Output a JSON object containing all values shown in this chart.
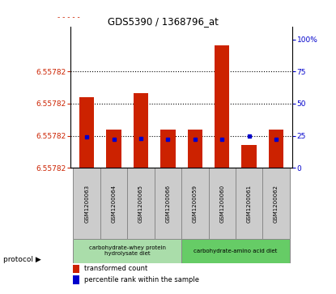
{
  "title": "GDS5390 / 1368796_at",
  "samples": [
    "GSM1200063",
    "GSM1200064",
    "GSM1200065",
    "GSM1200066",
    "GSM1200059",
    "GSM1200060",
    "GSM1200061",
    "GSM1200062"
  ],
  "ytick_labels": [
    "6.55782",
    "6.55782",
    "6.55782",
    "6.55782"
  ],
  "ylim": [
    0,
    110
  ],
  "ytick_positions": [
    0,
    25,
    50,
    75
  ],
  "bar_heights": [
    55,
    30,
    58,
    30,
    30,
    95,
    18,
    30
  ],
  "percentile_yvals": [
    24,
    22,
    23,
    22,
    22,
    22,
    25,
    22
  ],
  "right_ytick_labels": [
    "0",
    "25",
    "50",
    "75",
    "100%"
  ],
  "right_ytick_positions": [
    0,
    25,
    50,
    75,
    100
  ],
  "dotted_lines": [
    75,
    50,
    25
  ],
  "bar_color": "#cc2200",
  "percentile_color": "#0000cc",
  "group1_label": "carbohydrate-whey protein\nhydrolysate diet",
  "group2_label": "carbohydrate-amino acid diet",
  "group1_color": "#aaddaa",
  "group2_color": "#66cc66",
  "group1_indices": [
    0,
    1,
    2,
    3
  ],
  "group2_indices": [
    4,
    5,
    6,
    7
  ],
  "protocol_label": "protocol",
  "legend_red_label": "transformed count",
  "legend_blue_label": "percentile rank within the sample",
  "left_label_color": "#cc2200",
  "right_label_color": "#0000cc"
}
